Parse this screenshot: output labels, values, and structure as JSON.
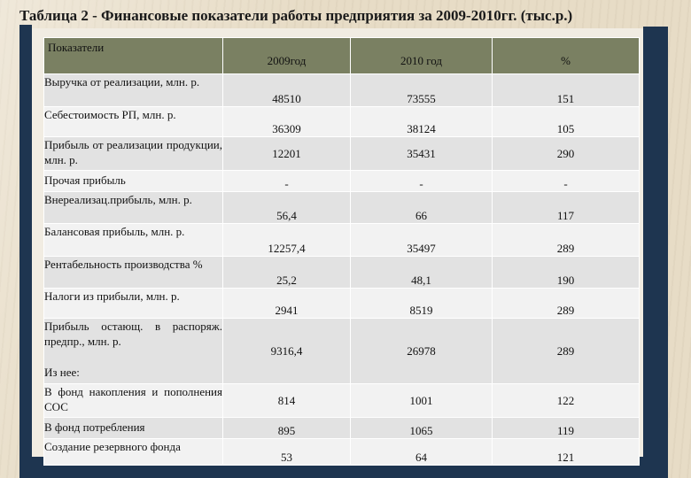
{
  "title": "Таблица 2 - Финансовые показатели работы предприятия за 2009-2010гг. (тыс.р.)",
  "table": {
    "headers": [
      "Показатели",
      "2009год",
      "2010 год",
      "%"
    ],
    "rows": [
      {
        "name": "Выручка от реализации, млн. р.",
        "v2009": "48510",
        "v2010": "73555",
        "pct": "151"
      },
      {
        "name": "Себестоимость РП, млн. р.",
        "v2009": "36309",
        "v2010": "38124",
        "pct": "105"
      },
      {
        "name": "Прибыль от реализации продукции, млн. р.",
        "v2009": "12201",
        "v2010": "35431",
        "pct": "290"
      },
      {
        "name": "Прочая прибыль",
        "v2009": "-",
        "v2010": "-",
        "pct": "-"
      },
      {
        "name": "Внереализац.прибыль, млн. р.",
        "v2009": "56,4",
        "v2010": "66",
        "pct": "117"
      },
      {
        "name": "Балансовая прибыль, млн. р.",
        "v2009": "12257,4",
        "v2010": "35497",
        "pct": "289"
      },
      {
        "name": "Рентабельность производства %",
        "v2009": "25,2",
        "v2010": "48,1",
        "pct": "190"
      },
      {
        "name": "Налоги из прибыли, млн. р.",
        "v2009": "2941",
        "v2010": "8519",
        "pct": "289"
      },
      {
        "name": "Прибыль остающ. в распоряж. предпр., млн. р.",
        "note": "Из нее:",
        "v2009": "9316,4",
        "v2010": "26978",
        "pct": "289"
      },
      {
        "name": "В фонд накопления и пополнения СОС",
        "v2009": "814",
        "v2010": "1001",
        "pct": "122"
      },
      {
        "name": "В фонд потребления",
        "v2009": "895",
        "v2010": "1065",
        "pct": "119"
      },
      {
        "name": "Создание резервного фонда",
        "v2009": "53",
        "v2010": "64",
        "pct": "121"
      }
    ]
  },
  "colors": {
    "frame": "#1e3550",
    "header_bg": "#7a8062",
    "row_odd": "#e2e2e2",
    "row_even": "#f2f2f2"
  }
}
